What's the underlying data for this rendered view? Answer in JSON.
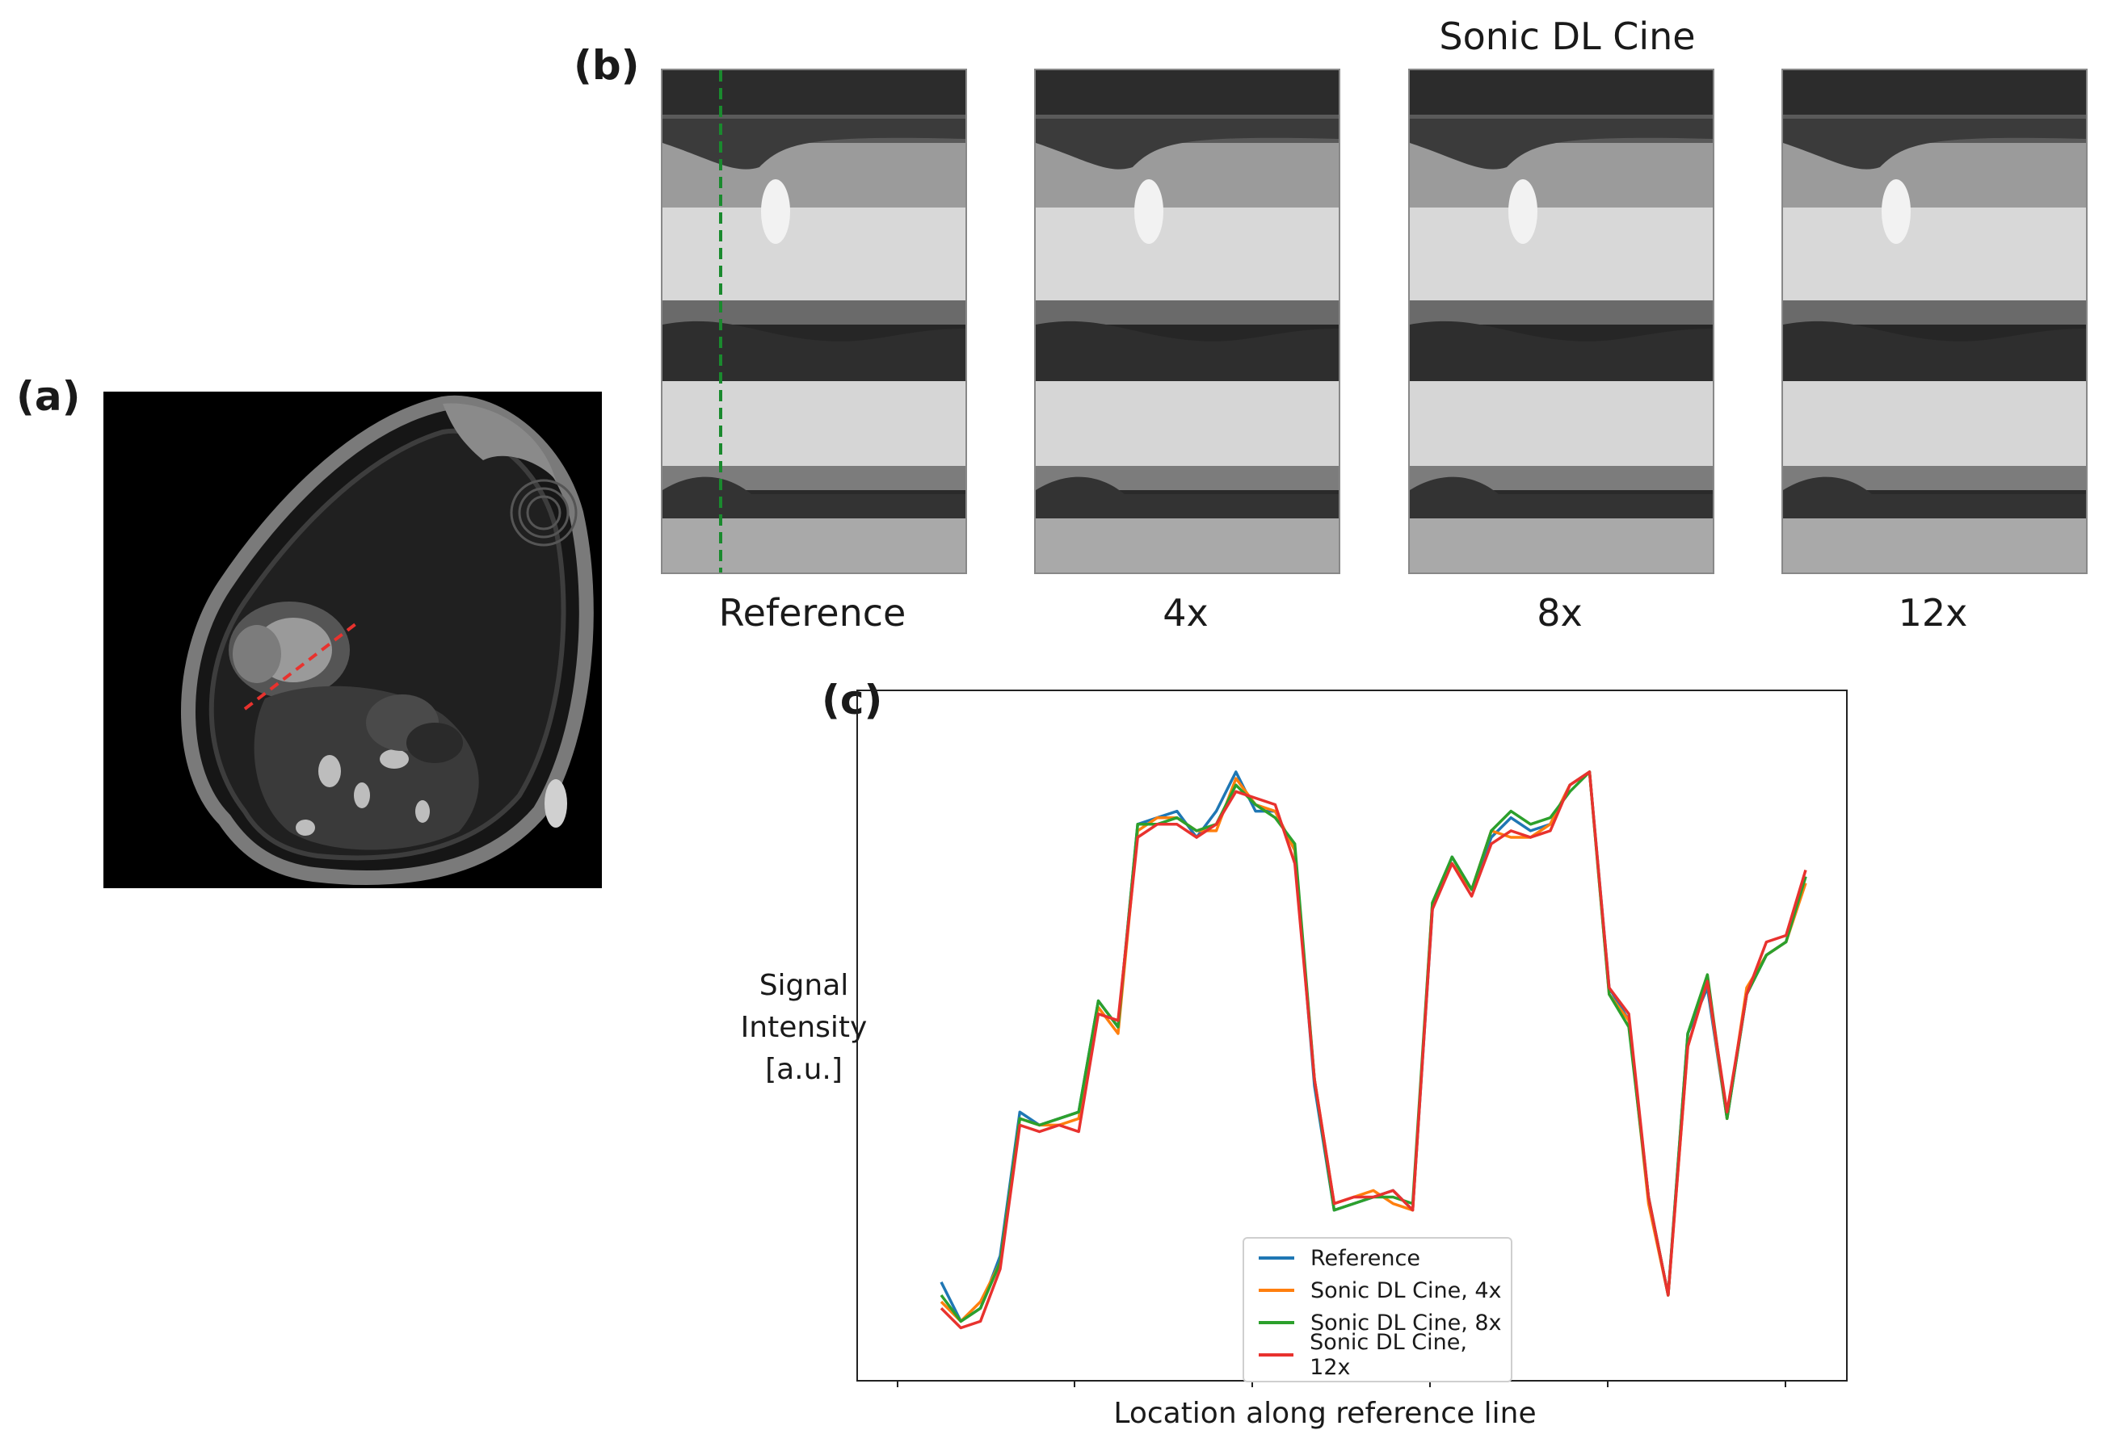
{
  "panels": {
    "a": {
      "label": "(a)"
    },
    "b": {
      "label": "(b)",
      "title": "Sonic DL Cine",
      "images": [
        {
          "caption": "Reference"
        },
        {
          "caption": "4x"
        },
        {
          "caption": "8x"
        },
        {
          "caption": "12x"
        }
      ]
    },
    "c": {
      "label": "(c)"
    }
  },
  "colors": {
    "reference_line": "#e8322e",
    "marker_line": "#1a8a2e",
    "series": [
      "#1f77b4",
      "#ff7f0e",
      "#2ca02c",
      "#e8322e"
    ]
  },
  "chart_data": {
    "type": "line",
    "title": "",
    "xlabel": "Location along reference line",
    "ylabel": "Signal Intensity [a.u.]",
    "ylabel_lines": [
      "Signal",
      "Intensity",
      "[a.u.]"
    ],
    "x_ticks_labeled": false,
    "y_ticks_shown": false,
    "grid": false,
    "legend_position": "bottom-center",
    "ylim": [
      0,
      100
    ],
    "series": [
      {
        "name": "Reference",
        "values": [
          12,
          6,
          8,
          16,
          38,
          36,
          37,
          38,
          55,
          51,
          82,
          83,
          84,
          80,
          84,
          90,
          84,
          84,
          78,
          42,
          23,
          24,
          25,
          26,
          23,
          69,
          77,
          72,
          80,
          83,
          81,
          82,
          88,
          90,
          57,
          52,
          25,
          10,
          50,
          57,
          37,
          56,
          62,
          64,
          74
        ]
      },
      {
        "name": "Sonic DL Cine, 4x",
        "values": [
          9,
          6,
          9,
          15,
          37,
          36,
          36,
          37,
          54,
          50,
          81,
          83,
          83,
          81,
          81,
          89,
          85,
          84,
          78,
          43,
          24,
          25,
          26,
          24,
          23,
          70,
          76,
          72,
          81,
          80,
          80,
          82,
          88,
          90,
          56,
          52,
          24,
          10,
          48,
          58,
          37,
          57,
          62,
          64,
          73
        ]
      },
      {
        "name": "Sonic DL Cine, 8x",
        "values": [
          10,
          6,
          8,
          15,
          37,
          36,
          37,
          38,
          55,
          51,
          82,
          82,
          83,
          81,
          82,
          88,
          85,
          83,
          79,
          43,
          23,
          24,
          25,
          25,
          24,
          70,
          77,
          72,
          81,
          84,
          82,
          83,
          87,
          90,
          56,
          51,
          25,
          10,
          50,
          59,
          37,
          56,
          62,
          64,
          74
        ]
      },
      {
        "name": "Sonic DL Cine, 12x",
        "values": [
          8,
          5,
          6,
          14,
          36,
          35,
          36,
          35,
          53,
          52,
          80,
          82,
          82,
          80,
          82,
          87,
          86,
          85,
          76,
          43,
          24,
          25,
          25,
          26,
          23,
          69,
          76,
          71,
          79,
          81,
          80,
          81,
          88,
          90,
          57,
          53,
          25,
          10,
          48,
          58,
          38,
          56,
          64,
          65,
          75
        ]
      }
    ]
  }
}
